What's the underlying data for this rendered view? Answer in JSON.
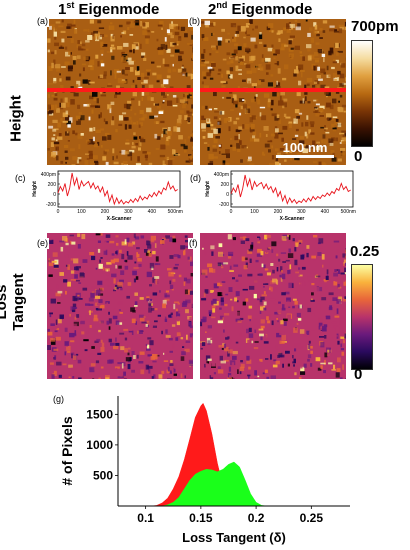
{
  "column_titles": {
    "first": {
      "prefix": "1",
      "sup": "st",
      "suffix": " Eigenmode"
    },
    "second": {
      "prefix": "2",
      "sup": "nd",
      "suffix": " Eigenmode"
    }
  },
  "panel_labels": {
    "a": "(a)",
    "b": "(b)",
    "c": "(c)",
    "d": "(d)",
    "e": "(e)",
    "f": "(f)",
    "g": "(g)"
  },
  "row_labels": {
    "height": "Height",
    "loss_line1": "Loss",
    "loss_line2": "Tangent"
  },
  "colorbars": {
    "height": {
      "max": "700pm",
      "min": "0",
      "colors": [
        "#000000",
        "#3a1202",
        "#7a3506",
        "#b86a12",
        "#e0a040",
        "#f5dca0",
        "#ffffff"
      ]
    },
    "loss": {
      "max": "0.25",
      "min": "0",
      "colors": [
        "#000004",
        "#2a0a5e",
        "#6a1a7c",
        "#b8336a",
        "#e8653a",
        "#f9b23c",
        "#fcffa4"
      ]
    }
  },
  "scale_bar": "100 nm",
  "chart_data": [
    {
      "type": "line",
      "panel": "(c)",
      "xlabel": "X-Scanner",
      "ylabel": "Height",
      "xticks": [
        "0",
        "100",
        "200",
        "300",
        "400",
        "500nm"
      ],
      "yticks": [
        "400pm",
        "200",
        "0",
        "-200"
      ],
      "xlim": [
        0,
        520
      ],
      "ylim": [
        -260,
        460
      ],
      "color": "#e8141c",
      "x": [
        0,
        10,
        20,
        30,
        40,
        50,
        60,
        70,
        80,
        90,
        100,
        110,
        120,
        130,
        140,
        150,
        160,
        170,
        180,
        190,
        200,
        210,
        220,
        230,
        240,
        250,
        260,
        270,
        280,
        290,
        300,
        310,
        320,
        330,
        340,
        350,
        360,
        370,
        380,
        390,
        400,
        410,
        420,
        430,
        440,
        450,
        460,
        470,
        480,
        490,
        500,
        510
      ],
      "y": [
        20,
        150,
        60,
        210,
        -40,
        120,
        420,
        180,
        320,
        90,
        260,
        160,
        210,
        250,
        120,
        220,
        100,
        160,
        40,
        140,
        -40,
        60,
        -150,
        -20,
        -200,
        -80,
        -190,
        -120,
        -200,
        -150,
        -180,
        -110,
        -170,
        -90,
        -150,
        -40,
        -120,
        -60,
        -100,
        -10,
        -60,
        30,
        -40,
        60,
        0,
        120,
        80,
        240,
        100,
        160,
        60,
        90
      ]
    },
    {
      "type": "line",
      "panel": "(d)",
      "xlabel": "X-Scanner",
      "ylabel": "Height",
      "xticks": [
        "0",
        "100",
        "200",
        "300",
        "400",
        "500nm"
      ],
      "yticks": [
        "400pm",
        "200",
        "0",
        "-200"
      ],
      "xlim": [
        0,
        520
      ],
      "ylim": [
        -260,
        460
      ],
      "color": "#e8141c",
      "x": [
        0,
        10,
        20,
        30,
        40,
        50,
        60,
        70,
        80,
        90,
        100,
        110,
        120,
        130,
        140,
        150,
        160,
        170,
        180,
        190,
        200,
        210,
        220,
        230,
        240,
        250,
        260,
        270,
        280,
        290,
        300,
        310,
        320,
        330,
        340,
        350,
        360,
        370,
        380,
        390,
        400,
        410,
        420,
        430,
        440,
        450,
        460,
        470,
        480,
        490,
        500,
        510
      ],
      "y": [
        0,
        120,
        40,
        190,
        -60,
        110,
        380,
        160,
        300,
        80,
        250,
        150,
        200,
        230,
        110,
        200,
        90,
        150,
        30,
        120,
        -50,
        50,
        -140,
        -30,
        -190,
        -80,
        -170,
        -110,
        -190,
        -140,
        -170,
        -100,
        -160,
        -80,
        -140,
        -50,
        -110,
        -50,
        -90,
        -20,
        -50,
        20,
        -30,
        50,
        10,
        110,
        70,
        210,
        90,
        150,
        50,
        80
      ]
    },
    {
      "type": "area",
      "panel": "(g)",
      "xlabel": "Loss Tangent (δ)",
      "ylabel": "# of Pixels",
      "xticks": [
        0.1,
        0.15,
        0.2,
        0.25
      ],
      "yticks": [
        500,
        1000,
        1500
      ],
      "xlim": [
        0.075,
        0.285
      ],
      "ylim": [
        0,
        1800
      ],
      "series": [
        {
          "color": "#ff1a1a",
          "x": [
            0.105,
            0.11,
            0.115,
            0.12,
            0.125,
            0.13,
            0.135,
            0.14,
            0.145,
            0.15,
            0.152,
            0.155,
            0.16,
            0.165,
            0.17,
            0.175,
            0.18
          ],
          "y": [
            0,
            10,
            50,
            130,
            280,
            480,
            760,
            1100,
            1450,
            1640,
            1680,
            1560,
            1180,
            700,
            320,
            90,
            0
          ]
        },
        {
          "color": "#1aff1a",
          "x": [
            0.115,
            0.12,
            0.125,
            0.13,
            0.135,
            0.14,
            0.145,
            0.15,
            0.155,
            0.16,
            0.165,
            0.17,
            0.175,
            0.18,
            0.185,
            0.19,
            0.195,
            0.2,
            0.205,
            0.21
          ],
          "y": [
            0,
            20,
            60,
            140,
            280,
            420,
            520,
            570,
            600,
            590,
            560,
            600,
            680,
            720,
            640,
            430,
            200,
            60,
            10,
            0
          ]
        }
      ]
    }
  ]
}
